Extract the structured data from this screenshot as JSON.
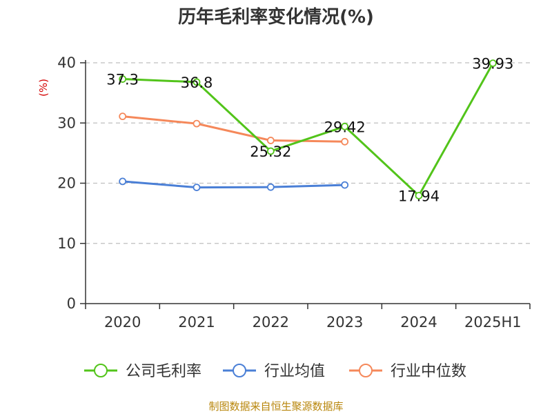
{
  "title": "历年毛利率变化情况(%)",
  "source": "制图数据来自恒生聚源数据库",
  "colors": {
    "company": "#52c41a",
    "industry_avg": "#4a7fd6",
    "industry_median": "#f5885a",
    "grid": "#bfbfbf",
    "axis": "#333333"
  },
  "chart_data": {
    "type": "line",
    "title": "历年毛利率变化情况(%)",
    "ylabel": "(%)",
    "xlabel": "",
    "categories": [
      "2020",
      "2021",
      "2022",
      "2023",
      "2024",
      "2025H1"
    ],
    "ylim": [
      0,
      40
    ],
    "yticks": [
      0,
      10,
      20,
      30,
      40
    ],
    "grid": true,
    "legend_position": "bottom",
    "series": [
      {
        "name": "公司毛利率",
        "key": "company",
        "values": [
          37.3,
          36.8,
          25.32,
          29.42,
          17.94,
          39.93
        ],
        "labels": [
          "37.3",
          "36.8",
          "25.32",
          "29.42",
          "17.94",
          "39.93"
        ]
      },
      {
        "name": "行业均值",
        "key": "industry_avg",
        "values": [
          20.3,
          19.3,
          19.35,
          19.7,
          null,
          null
        ]
      },
      {
        "name": "行业中位数",
        "key": "industry_median",
        "values": [
          31.1,
          29.9,
          27.1,
          26.9,
          null,
          null
        ]
      }
    ]
  }
}
